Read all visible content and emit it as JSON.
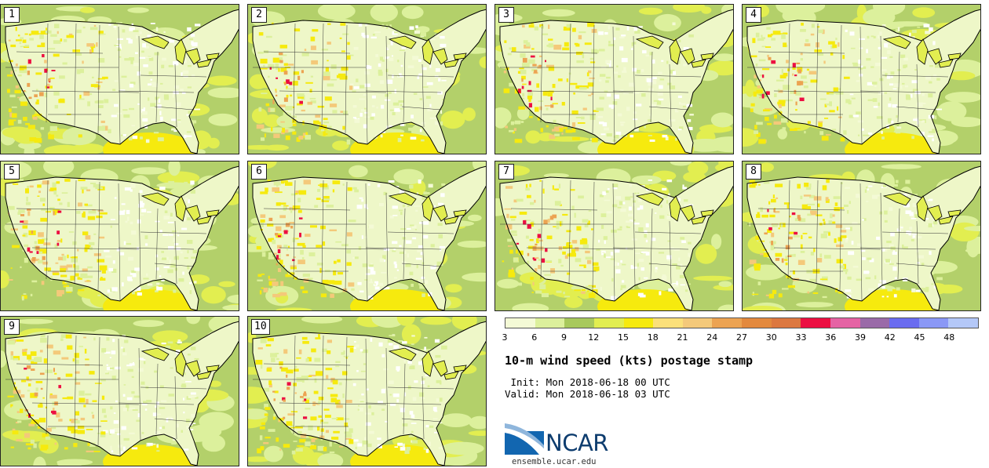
{
  "panels": [
    {
      "label": "1"
    },
    {
      "label": "2"
    },
    {
      "label": "3"
    },
    {
      "label": "4"
    },
    {
      "label": "5"
    },
    {
      "label": "6"
    },
    {
      "label": "7"
    },
    {
      "label": "8"
    },
    {
      "label": "9"
    },
    {
      "label": "10"
    }
  ],
  "legend": {
    "colors": [
      "#f4fad6",
      "#dcf09c",
      "#a8c95c",
      "#e2ee50",
      "#f6ea0e",
      "#fbe07a",
      "#f4c97a",
      "#eca352",
      "#e3893e",
      "#dc7840",
      "#ec0f42",
      "#e563a4",
      "#9a6aa8",
      "#6a6cf0",
      "#8a98f6",
      "#b4c8f8"
    ],
    "ticks": [
      "3",
      "6",
      "9",
      "12",
      "15",
      "18",
      "21",
      "24",
      "27",
      "30",
      "33",
      "36",
      "39",
      "42",
      "45",
      "48"
    ]
  },
  "title": "10-m wind speed (kts) postage stamp",
  "init_text": " Init: Mon 2018-06-18 00 UTC",
  "valid_text": "Valid: Mon 2018-06-18 03 UTC",
  "logo": {
    "name": "NCAR",
    "url": "ensemble.ucar.edu"
  }
}
